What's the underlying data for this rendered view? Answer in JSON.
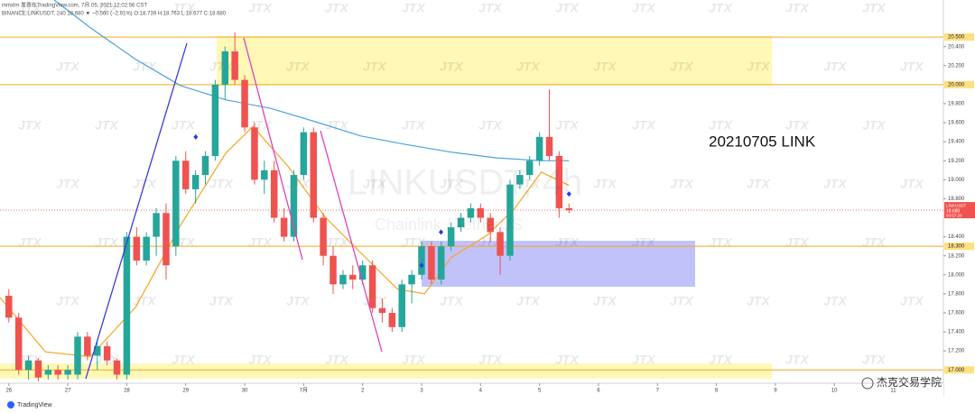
{
  "chart_data": {
    "type": "candlestick",
    "header_line1": "mmxlm 发表在TradingView.com, 7月 05, 2021 12:02:56 CST",
    "header_line2": "BINANCE:LINKUSDT, 240 18.680 ▼ −0.560 (−2.91%) O:18.739 H:18.763 L:18.677 C:18.680",
    "annotation": "20210705 LINK",
    "watermark_symbol": "LINKUSDT, 4h",
    "watermark_desc": "Chainlink / TetherUS",
    "watermark_logo": "JTX",
    "footer_logo": "TradingView",
    "corner_watermark": "杰克交易学院",
    "up_color": "#26a69a",
    "down_color": "#ef5350",
    "x": [
      26,
      26.167,
      26.333,
      26.5,
      26.667,
      26.833,
      27,
      27.167,
      27.333,
      27.5,
      27.667,
      27.833,
      28,
      28.167,
      28.333,
      28.5,
      28.667,
      28.833,
      29,
      29.167,
      29.333,
      29.5,
      29.667,
      29.833,
      30,
      30.167,
      30.333,
      30.5,
      30.667,
      30.833,
      31,
      31.167,
      31.333,
      31.5,
      31.667,
      31.833,
      32,
      32.167,
      32.333,
      32.5,
      32.667,
      32.833,
      33,
      33.167,
      33.333,
      33.5,
      33.667,
      33.833,
      34,
      34.167,
      34.333,
      34.5,
      34.667,
      34.833,
      35,
      35.167,
      35.333,
      35.5
    ],
    "open": [
      17.78,
      17.55,
      17.0,
      17.1,
      16.95,
      17.0,
      16.95,
      16.95,
      17.35,
      17.15,
      17.25,
      17.1,
      16.95,
      18.4,
      18.15,
      18.4,
      18.65,
      18.3,
      19.2,
      18.9,
      19.05,
      19.25,
      20.0,
      20.35,
      20.05,
      19.55,
      19.0,
      19.1,
      18.6,
      18.4,
      19.05,
      19.5,
      18.6,
      18.2,
      17.9,
      18.0,
      17.95,
      18.1,
      17.65,
      17.6,
      17.45,
      17.9,
      18.0,
      18.3,
      17.95,
      18.3,
      18.5,
      18.6,
      18.7,
      18.6,
      18.45,
      18.2,
      18.95,
      19.05,
      19.2,
      19.45,
      19.25,
      18.7
    ],
    "high": [
      17.85,
      17.6,
      17.15,
      17.12,
      17.05,
      17.05,
      17.05,
      17.4,
      17.4,
      17.3,
      17.3,
      17.12,
      18.45,
      18.5,
      18.45,
      18.7,
      18.75,
      19.25,
      19.3,
      19.1,
      19.3,
      20.05,
      20.4,
      20.55,
      20.1,
      19.6,
      19.2,
      19.2,
      18.7,
      19.1,
      19.55,
      19.55,
      18.65,
      18.3,
      18.05,
      18.1,
      18.15,
      18.15,
      17.75,
      17.65,
      17.95,
      18.05,
      18.35,
      18.35,
      18.35,
      18.55,
      18.65,
      18.75,
      18.75,
      18.65,
      18.5,
      19.0,
      19.1,
      19.25,
      19.5,
      19.95,
      19.3,
      18.75
    ],
    "low": [
      17.5,
      16.95,
      16.9,
      16.88,
      16.9,
      16.9,
      16.9,
      16.9,
      17.1,
      17.0,
      17.05,
      16.9,
      16.9,
      18.1,
      18.1,
      18.2,
      17.95,
      18.2,
      18.85,
      18.75,
      18.95,
      19.2,
      19.85,
      20.0,
      19.5,
      18.95,
      18.85,
      18.55,
      18.35,
      18.35,
      19.0,
      18.55,
      18.1,
      17.8,
      17.85,
      17.85,
      17.9,
      17.6,
      17.5,
      17.4,
      17.4,
      17.7,
      17.95,
      17.9,
      17.9,
      18.25,
      18.45,
      18.55,
      18.55,
      18.35,
      18.0,
      18.15,
      18.9,
      19.0,
      19.15,
      19.2,
      18.6,
      18.65
    ],
    "close": [
      17.55,
      17.0,
      17.1,
      16.92,
      17.0,
      16.95,
      17.0,
      17.35,
      17.15,
      17.25,
      17.1,
      16.95,
      18.4,
      18.15,
      18.4,
      18.65,
      18.1,
      19.2,
      18.9,
      19.05,
      19.25,
      20.0,
      20.35,
      20.05,
      19.55,
      19.0,
      19.1,
      18.6,
      18.4,
      19.05,
      19.5,
      18.6,
      18.2,
      17.9,
      18.0,
      17.95,
      18.1,
      17.65,
      17.6,
      17.45,
      17.9,
      18.0,
      18.3,
      17.95,
      18.3,
      18.5,
      18.6,
      18.7,
      18.6,
      18.45,
      18.2,
      18.95,
      19.05,
      19.2,
      19.45,
      19.25,
      18.7,
      18.68
    ],
    "ma_lines": [
      {
        "color": "#4aa3df",
        "x": [
          26.77,
          27.38,
          28.14,
          28.91,
          29.68,
          30.44,
          31.2,
          31.97,
          32.74,
          33.5,
          34.27,
          35.03,
          35.5
        ],
        "values": [
          20.89,
          20.6,
          20.27,
          19.99,
          19.84,
          19.75,
          19.61,
          19.46,
          19.37,
          19.29,
          19.23,
          19.2,
          19.2
        ]
      },
      {
        "color": "#f5a623",
        "x": [
          25.85,
          26.62,
          27.38,
          28.15,
          28.91,
          29.68,
          30.14,
          30.75,
          31.36,
          31.97,
          32.59,
          33.05,
          33.5,
          34.12,
          34.58,
          35.03,
          35.5
        ],
        "values": [
          17.76,
          17.19,
          17.14,
          17.66,
          18.52,
          19.28,
          19.56,
          19.13,
          18.61,
          18.23,
          17.85,
          17.8,
          18.18,
          18.42,
          18.7,
          19.08,
          18.94
        ]
      }
    ],
    "signals": {
      "color": "#1e40e0",
      "x": [
        29.17,
        33.0,
        33.33,
        35.5
      ],
      "values": [
        19.45,
        18.1,
        18.45,
        18.85
      ]
    },
    "xlim": [
      25.85,
      41.85
    ],
    "xticks": [
      26,
      27,
      28,
      29,
      30,
      {
        "value": 31,
        "label": "7月"
      },
      {
        "value": 32,
        "label": "2"
      },
      {
        "value": 33,
        "label": "3"
      },
      {
        "value": 34,
        "label": "4"
      },
      {
        "value": 35,
        "label": "5"
      },
      {
        "value": 36,
        "label": "6"
      },
      {
        "value": 37,
        "label": "7"
      },
      {
        "value": 38,
        "label": "8"
      },
      {
        "value": 39,
        "label": "9"
      },
      {
        "value": 40,
        "label": "10"
      },
      {
        "value": 41,
        "label": "11"
      }
    ],
    "ylim": [
      16.86,
      20.89
    ],
    "yticks": [
      {
        "value": 17.2,
        "label": "17.200"
      },
      {
        "value": 17.4,
        "label": "17.400"
      },
      {
        "value": 17.6,
        "label": "17.600"
      },
      {
        "value": 17.8,
        "label": "17.800"
      },
      {
        "value": 18.0,
        "label": "18.000"
      },
      {
        "value": 18.2,
        "label": "18.200"
      },
      {
        "value": 18.4,
        "label": "18.400"
      },
      {
        "value": 18.8,
        "label": "18.800"
      },
      {
        "value": 19.0,
        "label": "19.000"
      },
      {
        "value": 19.2,
        "label": "19.200"
      },
      {
        "value": 19.4,
        "label": "19.400"
      },
      {
        "value": 19.6,
        "label": "19.600"
      },
      {
        "value": 19.8,
        "label": "19.800"
      },
      {
        "value": 20.2,
        "label": "20.200"
      },
      {
        "value": 20.4,
        "label": "20.400"
      }
    ],
    "levels": {
      "color": "#f5a623",
      "values": [
        {
          "value": 20.5,
          "label": "20.500"
        },
        {
          "value": 20.0,
          "label": "20.000"
        },
        {
          "value": 18.3,
          "label": "18.300"
        },
        {
          "value": 17.0,
          "label": "17.000"
        }
      ]
    },
    "price_tag": {
      "color": "#ef5350",
      "symbol": "LINKUSDT",
      "price": {
        "value": 18.68,
        "label": "18.680"
      },
      "countdown": "03:57:20"
    }
  }
}
